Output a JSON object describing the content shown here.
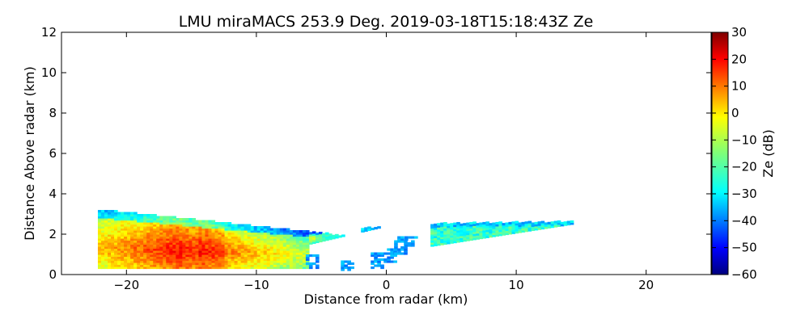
{
  "chart_data": {
    "type": "heatmap",
    "title": "LMU miraMACS 253.9 Deg. 2019-03-18T15:18:43Z  Ze",
    "xlabel": "Distance from radar (km)",
    "ylabel": "Distance Above radar  (km)",
    "xlim": [
      -25,
      25
    ],
    "ylim": [
      0,
      12
    ],
    "x_ticks": [
      -20,
      -10,
      0,
      10,
      20
    ],
    "x_tick_labels": [
      "−20",
      "−10",
      "0",
      "10",
      "20"
    ],
    "y_ticks": [
      0,
      2,
      4,
      6,
      8,
      10,
      12
    ],
    "y_tick_labels": [
      "0",
      "2",
      "4",
      "6",
      "8",
      "10",
      "12"
    ],
    "grid": false,
    "colorbar": {
      "label": "Ze (dB)",
      "range": [
        -60,
        30
      ],
      "ticks": [
        30,
        20,
        10,
        0,
        -10,
        -20,
        -30,
        -40,
        -50,
        -60
      ],
      "tick_labels": [
        "30",
        "20",
        "10",
        "0",
        "−10",
        "−20",
        "−30",
        "−40",
        "−50",
        "−60"
      ],
      "colormap": "jet"
    },
    "regions": [
      {
        "name": "left echo",
        "x_range": [
          -22.2,
          -0.3
        ],
        "top_km": [
          3.2,
          1.7
        ],
        "base_km": 0.3,
        "core_Ze_dB": 18,
        "edge_Ze_dB": -25
      },
      {
        "name": "right echo",
        "x_range": [
          3.4,
          14.3
        ],
        "top_km": [
          2.5,
          2.6
        ],
        "base_km_at_ends": [
          1.4,
          2.5
        ],
        "Ze_dB_range": [
          -30,
          -15
        ]
      }
    ]
  }
}
